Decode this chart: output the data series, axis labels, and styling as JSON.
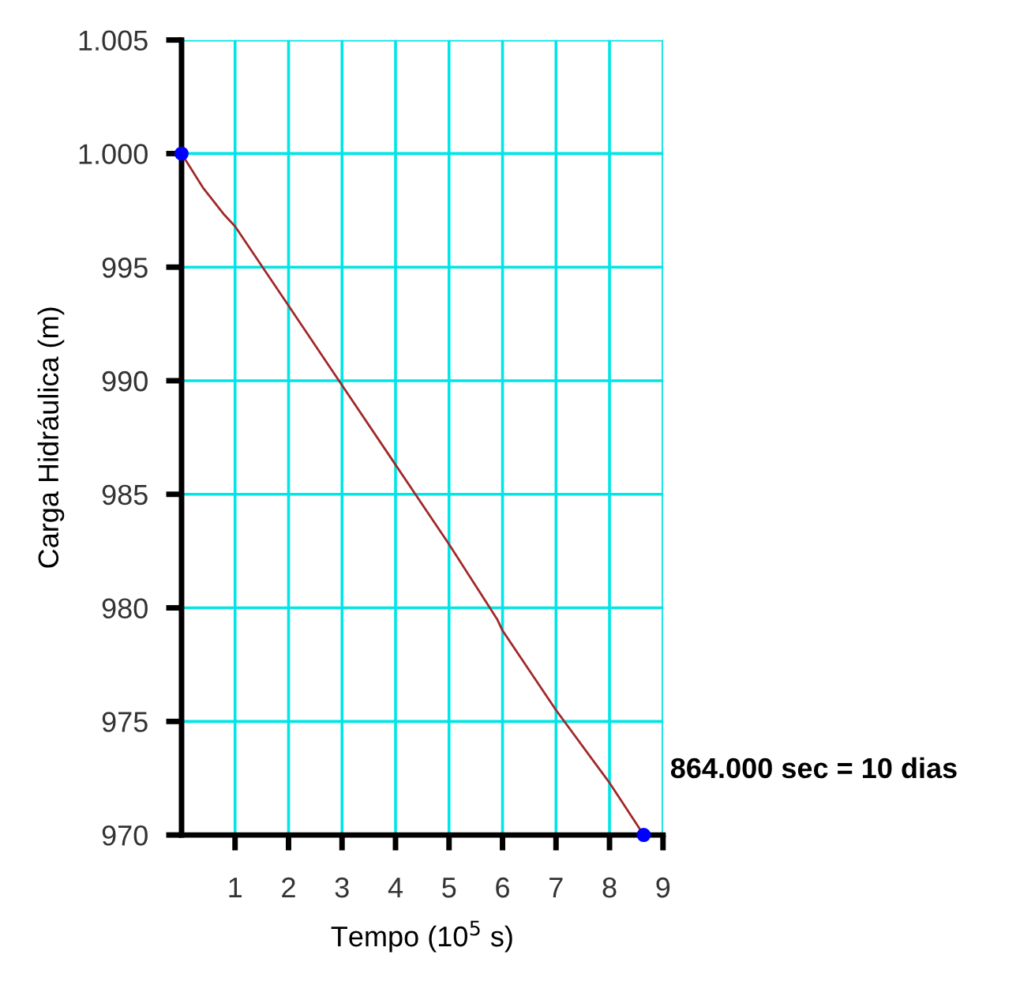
{
  "chart_data": {
    "type": "line",
    "xlabel": "Tempo (10$^{5}$ s)",
    "ylabel": "Carga Hidráulica (m)",
    "xlim": [
      0,
      9
    ],
    "xticks": [
      1,
      2,
      3,
      4,
      5,
      6,
      7,
      8,
      9
    ],
    "ylim": [
      970,
      1005
    ],
    "yticks": [
      970,
      975,
      980,
      985,
      990,
      995,
      {
        "value": 1000,
        "label": "1.000"
      },
      {
        "value": 1005,
        "label": "1.005"
      }
    ],
    "grid": true,
    "series": [
      {
        "color": "#a0282a",
        "x": [
          0,
          0.4,
          0.8,
          1,
          2,
          3,
          4,
          5,
          5.9,
          6,
          7,
          8,
          8.64
        ],
        "values": [
          1000,
          998.5,
          997.3,
          996.8,
          993.3,
          989.8,
          986.3,
          982.8,
          979.5,
          979,
          975.5,
          972.3,
          970
        ]
      },
      {
        "type": "scatter",
        "color": "#0000ff",
        "marker": "circle",
        "x": [
          0,
          8.64
        ],
        "values": [
          1000,
          970
        ]
      }
    ],
    "annotations": [
      {
        "text": "864.000 sec = 10 dias",
        "x": 8.64,
        "y": 970
      }
    ]
  }
}
